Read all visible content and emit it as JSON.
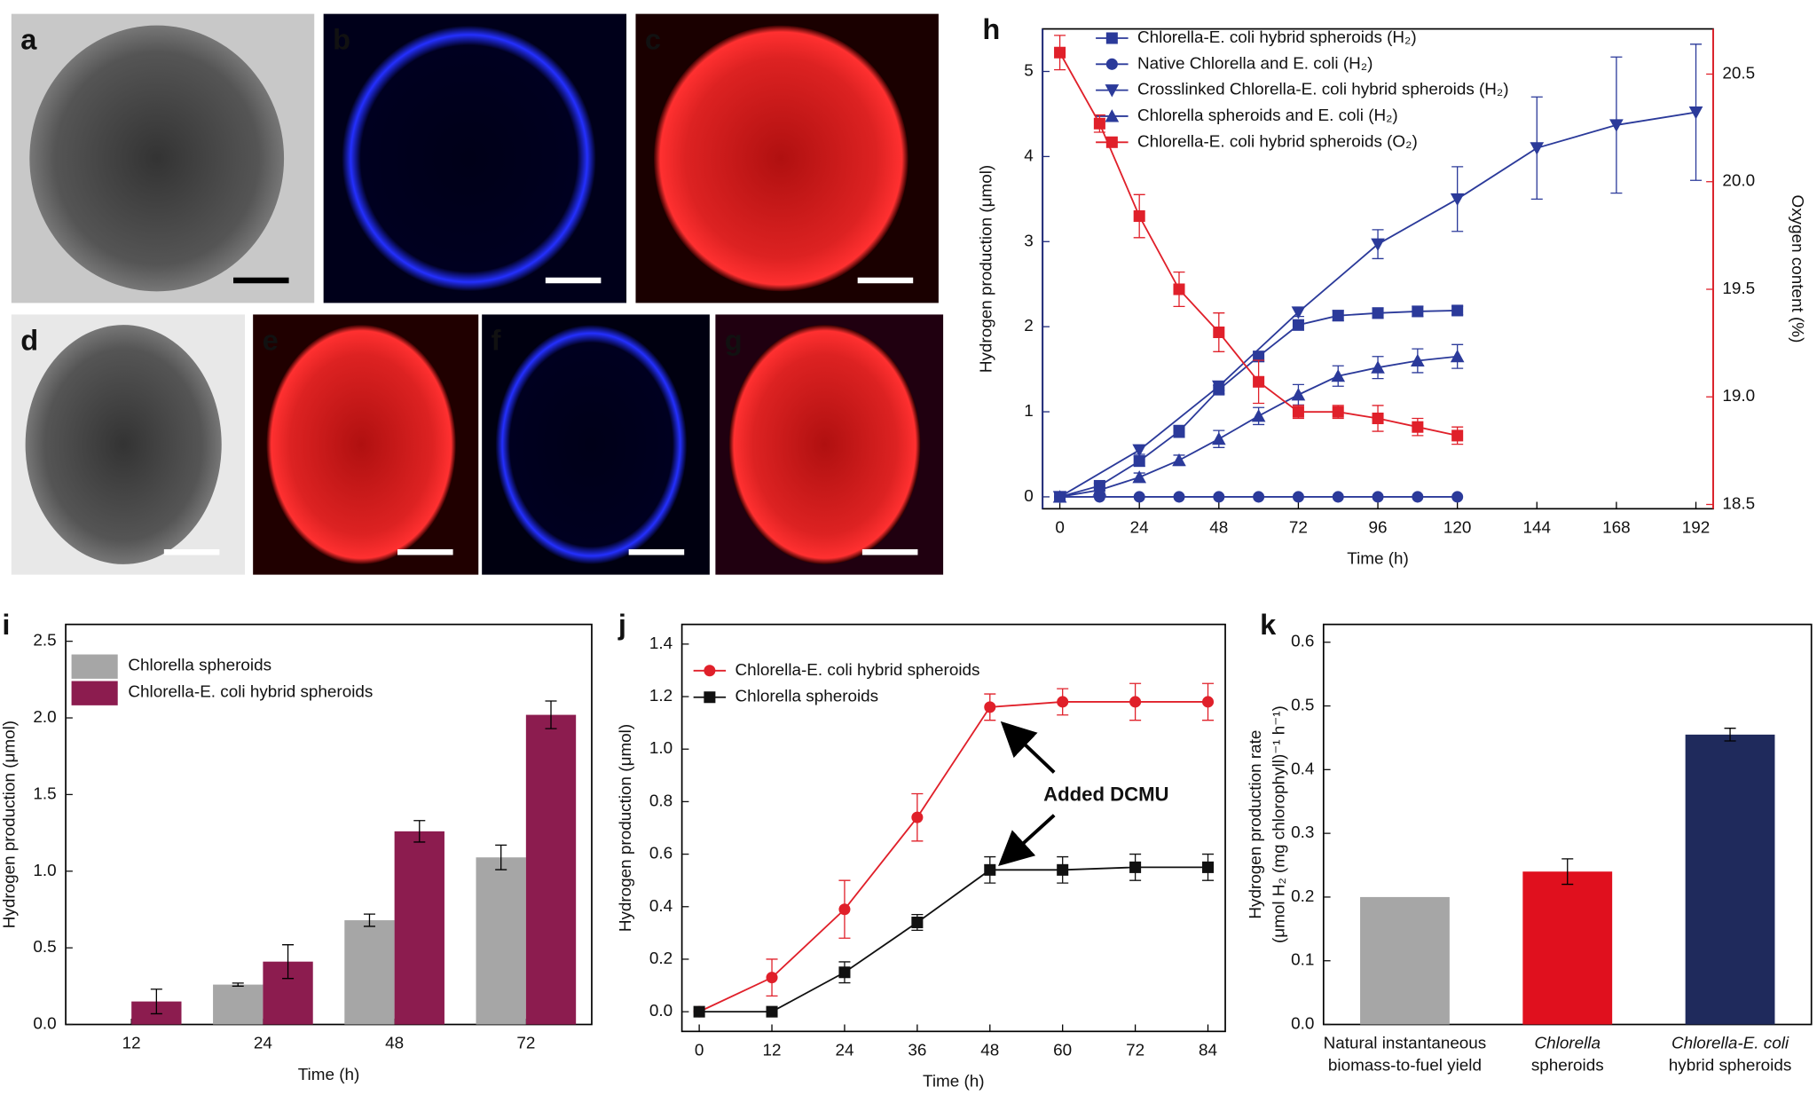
{
  "image_panels": [
    {
      "label": "a"
    },
    {
      "label": "b"
    },
    {
      "label": "c"
    },
    {
      "label": "d"
    },
    {
      "label": "e"
    },
    {
      "label": "f"
    },
    {
      "label": "g"
    }
  ],
  "chart_data": [
    {
      "type": "line",
      "panel": "h",
      "x_label": "Time (h)",
      "y_label": "Hydrogen production (μmol)",
      "y2_label": "Oxygen content (%)",
      "y_color": "#1f2a7a",
      "y2_color": "#e0202a",
      "xlim": [
        -5.2,
        197.2
      ],
      "xticks": [
        0,
        24,
        48,
        72,
        96,
        120,
        144,
        168,
        192
      ],
      "ylim": [
        -0.14,
        5.5
      ],
      "yticks": [
        0,
        1,
        2,
        3,
        4,
        5
      ],
      "y2lim": [
        18.48,
        20.71
      ],
      "y2ticks": [
        18.5,
        {
          "value": 19,
          "label": "19.0"
        },
        19.5,
        {
          "value": 20,
          "label": "20.0"
        },
        20.5
      ],
      "series": [
        {
          "name": "Chlorella-E. coli hybrid spheroids (H₂)",
          "color": "#2b3a9a",
          "marker": "square",
          "x": [
            0,
            12,
            24,
            36,
            48,
            60,
            72,
            84,
            96,
            108,
            120
          ],
          "values": [
            0,
            0.13,
            0.42,
            0.77,
            1.26,
            1.65,
            2.02,
            2.13,
            2.16,
            2.18,
            2.19
          ],
          "errors": [
            0,
            0.03,
            0.06,
            0.07,
            0.05,
            0.06,
            0.06,
            0.06,
            0.06,
            0.06,
            0.05
          ]
        },
        {
          "name": "Native Chlorella and E. coli (H₂)",
          "color": "#2b3a9a",
          "marker": "circle",
          "x": [
            0,
            12,
            24,
            36,
            48,
            60,
            72,
            84,
            96,
            108,
            120
          ],
          "values": [
            0,
            0,
            0,
            0,
            0,
            0,
            0,
            0,
            0,
            0,
            0
          ]
        },
        {
          "name": "Crosslinked Chlorella-E. coli hybrid spheroids (H₂)",
          "color": "#2b3a9a",
          "marker": "triangle-down",
          "x": [
            0,
            24,
            48,
            72,
            96,
            120,
            144,
            168,
            192
          ],
          "values": [
            0,
            0.55,
            1.3,
            2.17,
            2.97,
            3.5,
            4.1,
            4.37,
            4.52
          ],
          "errors": [
            0,
            0.05,
            0.05,
            0.05,
            0.17,
            0.38,
            0.6,
            0.8,
            0.8
          ]
        },
        {
          "name": "Chlorella spheroids and E. coli (H₂)",
          "color": "#2b3a9a",
          "marker": "triangle-up",
          "x": [
            0,
            12,
            24,
            36,
            48,
            60,
            72,
            84,
            96,
            108,
            120
          ],
          "values": [
            0,
            0.08,
            0.23,
            0.43,
            0.68,
            0.95,
            1.2,
            1.42,
            1.52,
            1.6,
            1.65
          ],
          "errors": [
            0,
            0.03,
            0.05,
            0.06,
            0.1,
            0.1,
            0.12,
            0.12,
            0.13,
            0.14,
            0.14
          ]
        },
        {
          "name": "Chlorella-E. coli hybrid spheroids (O₂)",
          "color": "#e0202a",
          "marker": "square",
          "axis": "y2",
          "x": [
            0,
            12,
            24,
            36,
            48,
            60,
            72,
            84,
            96,
            108,
            120
          ],
          "values": [
            20.6,
            20.27,
            19.84,
            19.5,
            19.3,
            19.07,
            18.93,
            18.93,
            18.9,
            18.86,
            18.82
          ],
          "errors": [
            0.08,
            0.04,
            0.1,
            0.08,
            0.09,
            0.1,
            0.03,
            0.03,
            0.06,
            0.04,
            0.04
          ]
        }
      ]
    },
    {
      "type": "bar",
      "panel": "i",
      "x_label": "Time (h)",
      "y_label": "Hydrogen production (μmol)",
      "categories": [
        "12",
        "24",
        "48",
        "72"
      ],
      "ylim": [
        0,
        2.61
      ],
      "yticks": [
        {
          "value": 0,
          "label": "0.0"
        },
        0.5,
        {
          "value": 1,
          "label": "1.0"
        },
        1.5,
        {
          "value": 2,
          "label": "2.0"
        },
        2.5
      ],
      "series": [
        {
          "name": "Chlorella spheroids",
          "color": "#a6a6a6",
          "values": [
            null,
            0.26,
            0.68,
            1.09
          ],
          "errors": [
            null,
            0.01,
            0.04,
            0.08
          ]
        },
        {
          "name": "Chlorella-E. coli hybrid spheroids",
          "color": "#8c1c4f",
          "values": [
            0.15,
            0.41,
            1.26,
            2.02
          ],
          "errors": [
            0.08,
            0.11,
            0.07,
            0.09
          ]
        }
      ]
    },
    {
      "type": "line",
      "panel": "j",
      "x_label": "Time (h)",
      "y_label": "Hydrogen production (μmol)",
      "annotation": "Added DCMU",
      "xlim": [
        -2.86,
        86.86
      ],
      "xticks": [
        0,
        12,
        24,
        36,
        48,
        60,
        72,
        84
      ],
      "ylim": [
        -0.075,
        1.475
      ],
      "yticks": [
        {
          "value": 0,
          "label": "0.0"
        },
        0.2,
        0.4,
        0.6,
        0.8,
        {
          "value": 1,
          "label": "1.0"
        },
        1.2,
        1.4
      ],
      "series": [
        {
          "name": "Chlorella-E. coli hybrid spheroids",
          "color": "#e0202a",
          "marker": "circle",
          "x": [
            0,
            12,
            24,
            36,
            48,
            60,
            72,
            84
          ],
          "values": [
            0,
            0.13,
            0.39,
            0.74,
            1.16,
            1.18,
            1.18,
            1.18
          ],
          "errors": [
            0,
            0.07,
            0.11,
            0.09,
            0.05,
            0.05,
            0.07,
            0.07
          ]
        },
        {
          "name": "Chlorella spheroids",
          "color": "#111111",
          "marker": "square",
          "x": [
            0,
            12,
            24,
            36,
            48,
            60,
            72,
            84
          ],
          "values": [
            0,
            0,
            0.15,
            0.34,
            0.54,
            0.54,
            0.55,
            0.55
          ],
          "errors": [
            0,
            0,
            0.04,
            0.03,
            0.05,
            0.05,
            0.05,
            0.05
          ]
        }
      ]
    },
    {
      "type": "bar",
      "panel": "k",
      "y_label": [
        "Hydrogen production rate",
        "(μmol H₂ (mg chlorophyll)⁻¹ h⁻¹)"
      ],
      "categories": [
        [
          "Natural instantaneous",
          "biomass-to-fuel yield"
        ],
        [
          "Chlorella",
          "spheroids"
        ],
        [
          "Chlorella-E. coli",
          "hybrid spheroids"
        ]
      ],
      "ylim": [
        0,
        0.628
      ],
      "yticks": [
        {
          "value": 0,
          "label": "0.0"
        },
        0.1,
        0.2,
        0.3,
        0.4,
        0.5,
        0.6
      ],
      "series": [
        {
          "colors": [
            "#a6a6a6",
            "#e0101e",
            "#1f2a5c"
          ],
          "values": [
            0.2,
            0.24,
            0.455
          ],
          "errors": [
            null,
            0.02,
            0.01
          ]
        }
      ]
    }
  ]
}
